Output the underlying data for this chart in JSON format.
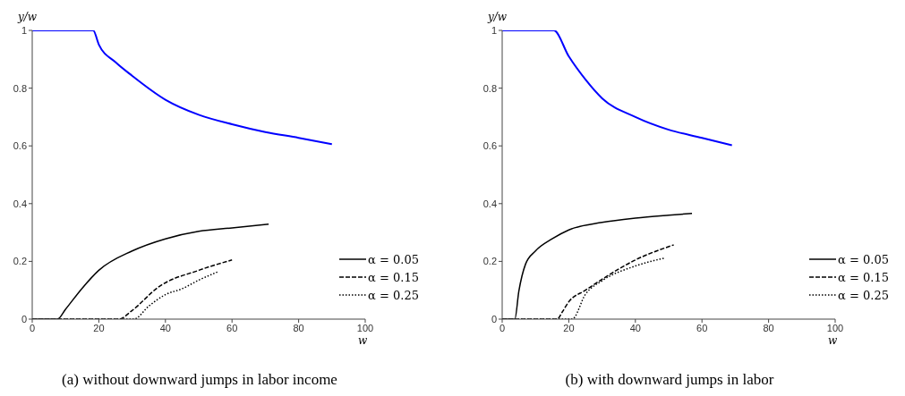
{
  "chart_data": [
    {
      "type": "line",
      "title": "(a) without downward jumps in labor income",
      "xlabel": "w",
      "ylabel": "y/w",
      "xlim": [
        0,
        100
      ],
      "ylim": [
        0,
        1
      ],
      "xticks": [
        0,
        20,
        40,
        60,
        80,
        100
      ],
      "yticks": [
        0,
        0.2,
        0.4,
        0.6,
        0.8,
        1
      ],
      "grid": false,
      "legend": "bottom right",
      "marker": "none",
      "series": [
        {
          "color": "#0000ff",
          "line_style": "solid",
          "x": [
            0,
            10,
            18.3,
            20,
            25,
            30,
            40,
            50,
            60,
            70,
            80,
            90
          ],
          "values": [
            1,
            1,
            1,
            0.951,
            0.89,
            0.843,
            0.76,
            0.708,
            0.675,
            0.648,
            0.628,
            0.606
          ]
        },
        {
          "name": "α = 0.05",
          "color": "#000000",
          "line_style": "solid",
          "x": [
            0,
            7.6,
            10,
            15,
            20,
            30,
            40,
            50,
            60,
            71
          ],
          "values": [
            0,
            0,
            0.034,
            0.107,
            0.169,
            0.236,
            0.278,
            0.304,
            0.316,
            0.329
          ]
        },
        {
          "name": "α = 0.15",
          "color": "#000000",
          "line_style": "dashed",
          "x": [
            0,
            26,
            30,
            38,
            50,
            60
          ],
          "values": [
            0,
            0,
            0.03,
            0.112,
            0.169,
            0.205
          ]
        },
        {
          "name": "α = 0.25",
          "color": "#000000",
          "line_style": "dotted",
          "x": [
            0,
            30.5,
            35,
            40,
            45,
            50,
            56
          ],
          "values": [
            0,
            0,
            0.045,
            0.085,
            0.105,
            0.135,
            0.165
          ]
        }
      ]
    },
    {
      "type": "line",
      "title": "(b) with downward jumps in labor",
      "xlabel": "w",
      "ylabel": "y/w",
      "xlim": [
        0,
        100
      ],
      "ylim": [
        0,
        1
      ],
      "xticks": [
        0,
        20,
        40,
        60,
        80,
        100
      ],
      "yticks": [
        0,
        0.2,
        0.4,
        0.6,
        0.8,
        1
      ],
      "grid": false,
      "legend": "bottom right",
      "marker": "none",
      "series": [
        {
          "color": "#0000ff",
          "line_style": "solid",
          "x": [
            0,
            10,
            15.5,
            20,
            25,
            30,
            40,
            50,
            60,
            69
          ],
          "values": [
            1,
            1,
            1,
            0.91,
            0.83,
            0.765,
            0.7,
            0.656,
            0.628,
            0.602
          ]
        },
        {
          "name": "α = 0.05",
          "color": "#000000",
          "line_style": "solid",
          "x": [
            0,
            3.8,
            5,
            7,
            10,
            15,
            20,
            30,
            40,
            50,
            57
          ],
          "values": [
            0,
            0,
            0.096,
            0.19,
            0.236,
            0.278,
            0.309,
            0.335,
            0.35,
            0.36,
            0.366
          ]
        },
        {
          "name": "α = 0.15",
          "color": "#000000",
          "line_style": "dashed",
          "x": [
            0,
            16.5,
            18,
            20,
            25,
            30,
            40,
            51.5
          ],
          "values": [
            0,
            0,
            0.024,
            0.06,
            0.1,
            0.138,
            0.205,
            0.257
          ]
        },
        {
          "name": "α = 0.25",
          "color": "#000000",
          "line_style": "dotted",
          "x": [
            0,
            21,
            25,
            30,
            40,
            49
          ],
          "values": [
            0,
            0,
            0.086,
            0.133,
            0.184,
            0.212
          ]
        }
      ]
    }
  ]
}
